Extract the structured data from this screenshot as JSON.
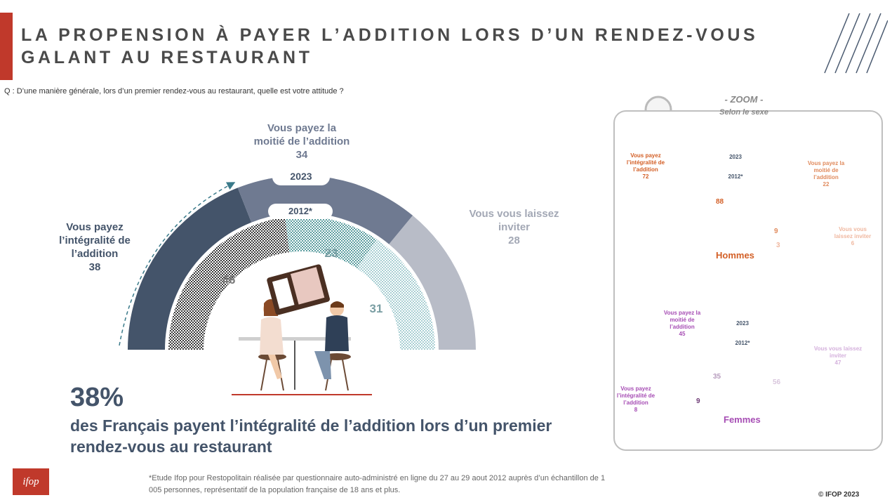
{
  "header": {
    "title_line1": "LA PROPENSION À PAYER L’ADDITION LORS D’UN RENDEZ-VOUS",
    "title_line2": "GALANT AU RESTAURANT",
    "question": "Q : D’une manière générale, lors d’un premier rendez-vous au restaurant, quelle est votre attitude ?"
  },
  "chart_data": [
    {
      "type": "donut-half",
      "series": [
        {
          "name": "2023",
          "values": [
            38,
            34,
            28
          ]
        },
        {
          "name": "2012*",
          "values": [
            46,
            23,
            31
          ]
        }
      ],
      "categories": [
        "Vous payez l’intégralité de l’addition",
        "Vous payez la moitié de l’addition",
        "Vous vous laissez inviter"
      ],
      "colors_2023": [
        "#44546a",
        "#6f7a91",
        "#b8bcc7"
      ],
      "colors_2012": [
        "#3a3a3a",
        "#5c9ea0",
        "#a8cfd3"
      ]
    },
    {
      "type": "donut-half",
      "group": "Hommes",
      "series": [
        {
          "name": "2023",
          "values": [
            72,
            22,
            6
          ]
        },
        {
          "name": "2012*",
          "values": [
            88,
            9,
            3
          ]
        }
      ],
      "colors_2023": [
        "#d35f26",
        "#e08a5c",
        "#f2c4ae"
      ],
      "colors_2012": [
        "#8b5a3c",
        "#c9a98d",
        "#e9d4c4"
      ]
    },
    {
      "type": "donut-half",
      "group": "Femmes",
      "series": [
        {
          "name": "2023",
          "values": [
            8,
            45,
            47
          ]
        },
        {
          "name": "2012*",
          "values": [
            9,
            35,
            56
          ]
        }
      ],
      "colors_2023": [
        "#a64db4",
        "#c07fcb",
        "#dcbde3"
      ],
      "colors_2012": [
        "#6d3a75",
        "#b69bbd",
        "#dfd0e3"
      ]
    }
  ],
  "main_chart": {
    "year_2023": "2023",
    "year_2012": "2012*",
    "labels": {
      "full": {
        "line1": "Vous payez",
        "line2": "l’intégralité de",
        "line3": "l’addition",
        "value": "38"
      },
      "half": {
        "line1": "Vous payez la",
        "line2": "moitié de l’addition",
        "value": "34"
      },
      "invited": {
        "line1": "Vous vous laissez",
        "line2": "inviter",
        "value": "28"
      }
    },
    "inner_values": {
      "full": "46",
      "half": "23",
      "invited": "31"
    }
  },
  "highlight": {
    "percent": "38%",
    "text": "des Français payent l’intégralité de l’addition lors d’un premier rendez-vous au restaurant"
  },
  "zoom": {
    "title": "- ZOOM -",
    "subtitle": "Selon le sexe",
    "hommes": {
      "name": "Hommes",
      "year_2023": "2023",
      "year_2012": "2012*",
      "full": {
        "line1": "Vous payez",
        "line2": "l’intégralité de",
        "line3": "l’addition",
        "value": "72"
      },
      "half": {
        "line1": "Vous payez la",
        "line2": "moitié de",
        "line3": "l’addition",
        "value": "22"
      },
      "invited": {
        "line1": "Vous vous",
        "line2": "laissez inviter",
        "value": "6"
      },
      "inner": {
        "full": "88",
        "half": "9",
        "invited": "3"
      }
    },
    "femmes": {
      "name": "Femmes",
      "year_2023": "2023",
      "year_2012": "2012*",
      "full": {
        "line1": "Vous payez",
        "line2": "l’intégralité de",
        "line3": "l’addition",
        "value": "8"
      },
      "half": {
        "line1": "Vous payez la",
        "line2": "moitié de",
        "line3": "l’addition",
        "value": "45"
      },
      "invited": {
        "line1": "Vous vous laissez",
        "line2": "inviter",
        "value": "47"
      },
      "inner": {
        "full": "9",
        "half": "35",
        "invited": "56"
      }
    }
  },
  "footer": {
    "footnote": "*Etude Ifop pour Restopolitain réalisée par questionnaire auto-administré en ligne du 27 au 29 aout 2012 auprès d’un échantillon de 1 005 personnes, représentatif de la population française de 18 ans et plus.",
    "copyright": "© IFOP 2023",
    "logo_text": "ifop"
  }
}
